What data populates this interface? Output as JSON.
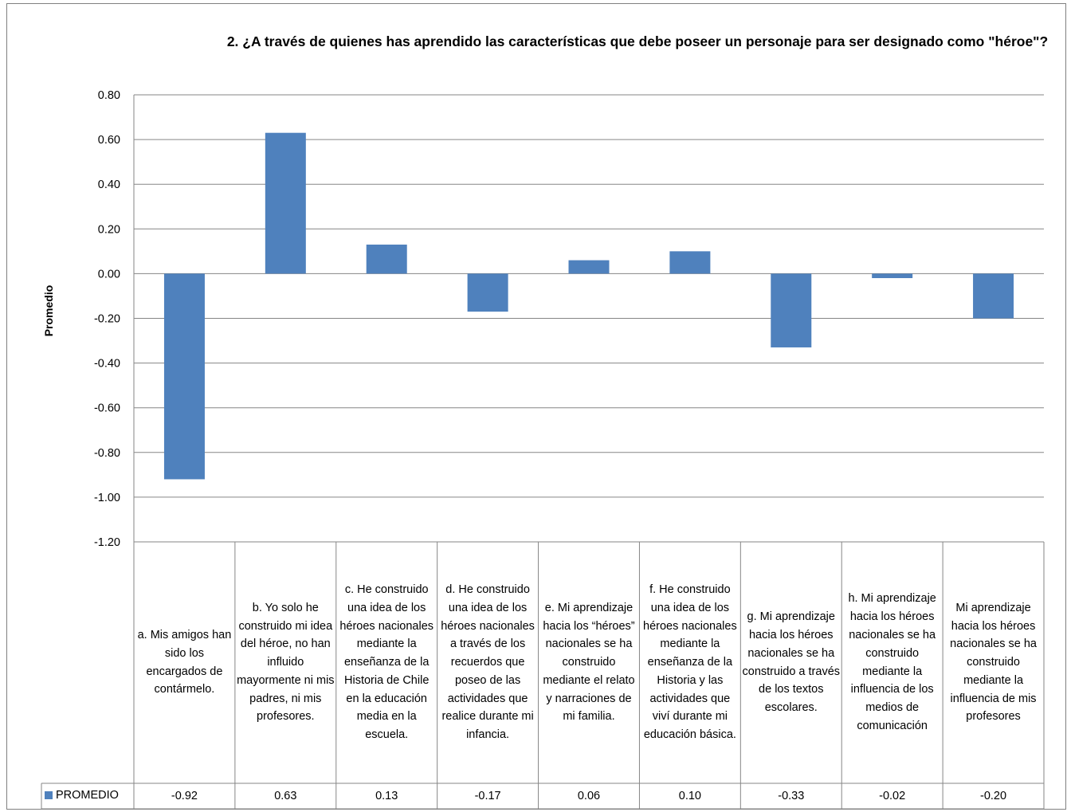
{
  "chart_data": {
    "type": "bar",
    "title": "2. ¿A través de quienes has aprendido las características que debe poseer un personaje para ser designado como \"héroe\"?",
    "ylabel": "Promedio",
    "ylim": [
      -1.2,
      0.8
    ],
    "yticks": [
      "0.80",
      "0.60",
      "0.40",
      "0.20",
      "0.00",
      "-0.20",
      "-0.40",
      "-0.60",
      "-0.80",
      "-1.00",
      "-1.20"
    ],
    "ytick_values": [
      0.8,
      0.6,
      0.4,
      0.2,
      0.0,
      -0.2,
      -0.4,
      -0.6,
      -0.8,
      -1.0,
      -1.2
    ],
    "grid": true,
    "legend_position": "data-table-left",
    "categories": [
      "a. Mis amigos han sido los encargados de contármelo.",
      "b. Yo solo he construido mi idea del héroe, no han influido mayormente ni mis padres, ni mis profesores.",
      "c. He construido una idea de los héroes nacionales mediante la enseñanza de la Historia de Chile en la educación media en la escuela.",
      "d. He construido una idea de los héroes nacionales a través de los recuerdos que poseo de las actividades que realice durante mi infancia.",
      "e. Mi aprendizaje hacia los “héroes” nacionales se ha construido mediante el relato y narraciones de mi familia.",
      "f. He construido una idea de los héroes nacionales mediante la enseñanza de la Historia y las actividades que viví durante mi educación básica.",
      "g. Mi aprendizaje hacia los héroes nacionales se ha construido a través de los textos escolares.",
      "h. Mi aprendizaje hacia los héroes nacionales se ha construido mediante la influencia de los medios de comunicación",
      "Mi aprendizaje hacia los héroes nacionales se ha construido mediante la influencia de mis profesores"
    ],
    "series": [
      {
        "name": "PROMEDIO",
        "color": "#4F81BD",
        "values": [
          -0.92,
          0.63,
          0.13,
          -0.17,
          0.06,
          0.1,
          -0.33,
          -0.02,
          -0.2
        ],
        "labels": [
          "-0.92",
          "0.63",
          "0.13",
          "-0.17",
          "0.06",
          "0.10",
          "-0.33",
          "-0.02",
          "-0.20"
        ]
      }
    ]
  }
}
